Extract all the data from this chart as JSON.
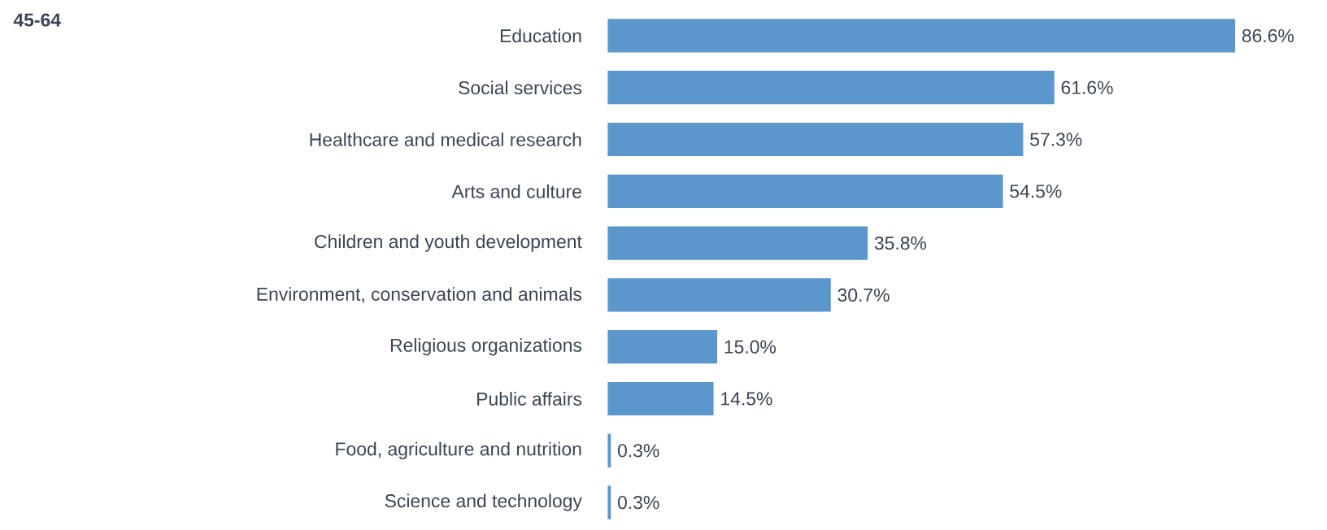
{
  "chart_data": {
    "type": "bar",
    "orientation": "horizontal",
    "title": "45-64",
    "categories": [
      "Education",
      "Social services",
      "Healthcare and medical research",
      "Arts and culture",
      "Children and youth development",
      "Environment, conservation and animals",
      "Religious organizations",
      "Public affairs",
      "Food, agriculture and nutrition",
      "Science and technology"
    ],
    "values": [
      86.6,
      61.6,
      57.3,
      54.5,
      35.8,
      30.7,
      15.0,
      14.5,
      0.3,
      0.3
    ],
    "value_labels": [
      "86.6%",
      "61.6%",
      "57.3%",
      "54.5%",
      "35.8%",
      "30.7%",
      "15.0%",
      "14.5%",
      "0.3%",
      "0.3%"
    ],
    "color": "#5b97cc"
  }
}
